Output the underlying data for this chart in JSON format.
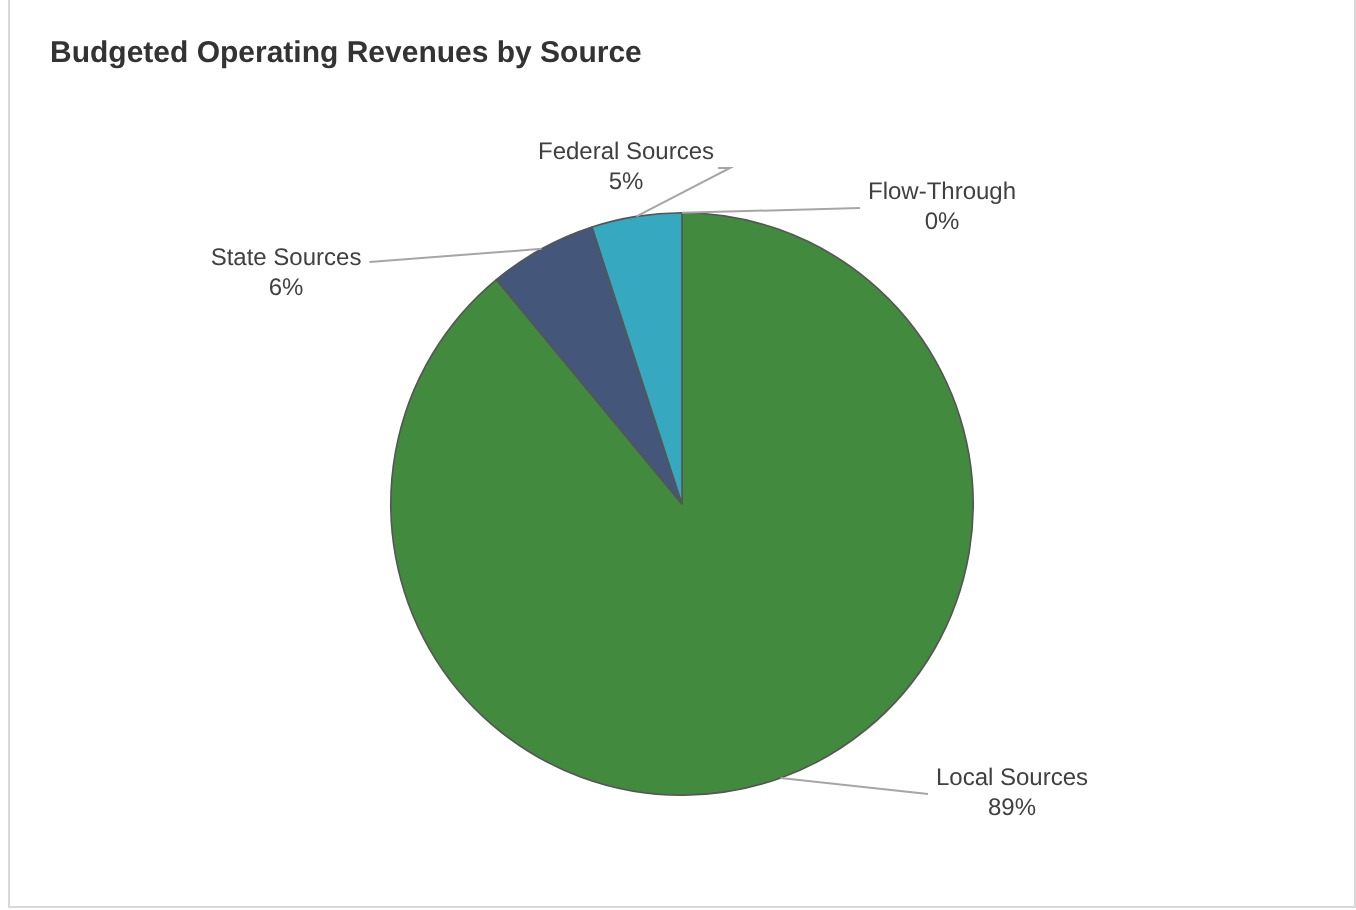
{
  "chart_data": {
    "type": "pie",
    "title": "Budgeted Operating Revenues by Source",
    "categories": [
      "Local Sources",
      "State Sources",
      "Federal Sources",
      "Flow-Through"
    ],
    "values": [
      89,
      6,
      5,
      0
    ],
    "value_labels": [
      "89%",
      "6%",
      "5%",
      "0%"
    ],
    "colors": [
      "#428a3e",
      "#44577a",
      "#36a9c1",
      "#8aa0b8"
    ],
    "legend": false
  }
}
